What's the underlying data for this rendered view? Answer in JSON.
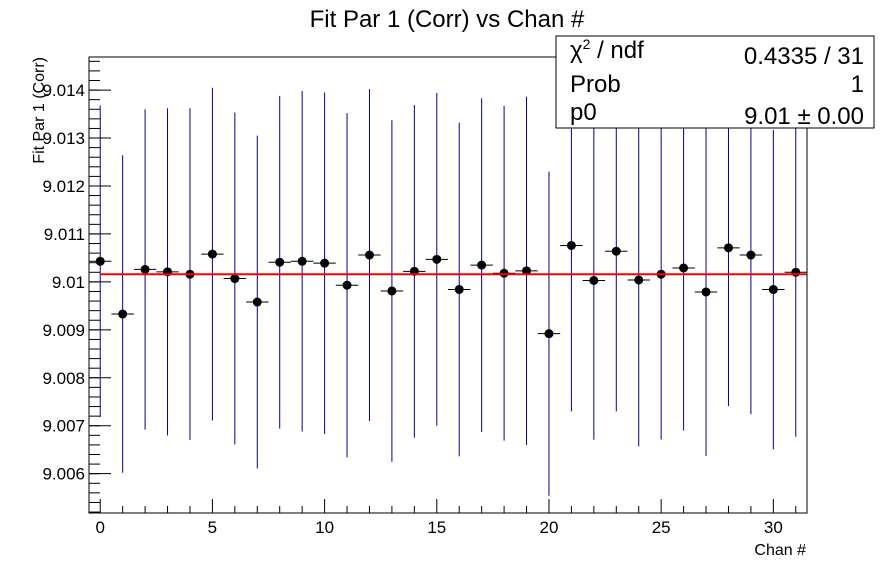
{
  "chart_data": {
    "type": "scatter",
    "title": "Fit Par 1 (Corr) vs Chan #",
    "xlabel": "Chan #",
    "ylabel": "Fit Par 1 (Corr)",
    "xlim": [
      -0.5,
      31.5
    ],
    "ylim": [
      9.00518,
      9.01469
    ],
    "x_ticks": [
      0,
      5,
      10,
      15,
      20,
      25,
      30
    ],
    "x_tick_labels": [
      "0",
      "5",
      "10",
      "15",
      "20",
      "25",
      "30"
    ],
    "y_ticks": [
      9.006,
      9.007,
      9.008,
      9.009,
      9.01,
      9.011,
      9.012,
      9.013,
      9.014
    ],
    "y_tick_labels": [
      "9.006",
      "9.007",
      "9.008",
      "9.009",
      "9.01",
      "9.011",
      "9.012",
      "9.013",
      "9.014"
    ],
    "series": [
      {
        "x": [
          0,
          1,
          2,
          3,
          4,
          5,
          6,
          7,
          8,
          9,
          10,
          11,
          12,
          13,
          14,
          15,
          16,
          17,
          18,
          19,
          20,
          21,
          22,
          23,
          24,
          25,
          26,
          27,
          28,
          29,
          30,
          31
        ],
        "y": [
          9.01043,
          9.00933,
          9.01026,
          9.01021,
          9.01016,
          9.01058,
          9.01007,
          9.00958,
          9.01041,
          9.01043,
          9.01039,
          9.00993,
          9.01056,
          9.00981,
          9.01022,
          9.01047,
          9.00984,
          9.01035,
          9.01018,
          9.01023,
          9.00892,
          9.01076,
          9.01003,
          9.01064,
          9.01004,
          9.01016,
          9.01029,
          9.00979,
          9.01071,
          9.01056,
          9.00984,
          9.0102
        ],
        "y_err": [
          0.00325,
          0.00331,
          0.00334,
          0.00341,
          0.00346,
          0.00347,
          0.00346,
          0.00347,
          0.00347,
          0.00355,
          0.00356,
          0.00359,
          0.00346,
          0.00356,
          0.00347,
          0.00347,
          0.00348,
          0.00348,
          0.00349,
          0.00363,
          0.00338,
          0.00346,
          0.00332,
          0.00334,
          0.00347,
          0.00345,
          0.00339,
          0.00342,
          0.0033,
          0.00332,
          0.00333,
          0.00343
        ],
        "x_err": 0.5,
        "marker_color": "#000000",
        "error_bar_color": "#00008b"
      }
    ],
    "fit": {
      "type": "constant",
      "p0": 9.01016,
      "color": "#ff0000"
    },
    "grid": false,
    "legend_position": "top-right"
  },
  "stats_box": {
    "rows": [
      {
        "label_main": "χ",
        "label_sup": "2",
        "label_rest": " / ndf",
        "value": "0.4335 / 31"
      },
      {
        "label": "Prob",
        "value": "1"
      },
      {
        "label": "p0",
        "value": "9.01 ± 0.00"
      }
    ]
  }
}
